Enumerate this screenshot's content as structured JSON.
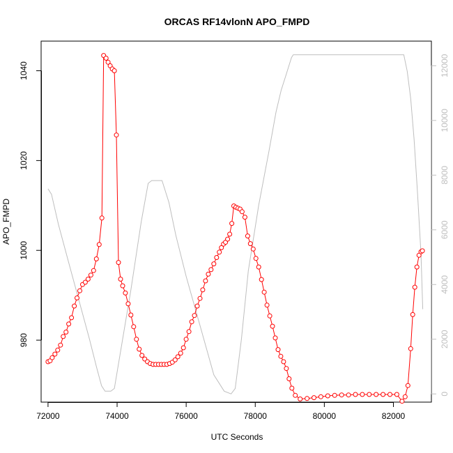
{
  "chart_data": {
    "type": "line",
    "title": "ORCAS RF14vlonN APO_FMPD",
    "xlabel": "UTC Seconds",
    "ylabel": "APO_FMPD",
    "xlim": [
      71800,
      83100
    ],
    "ylim": [
      966.2,
      1046.6
    ],
    "ylim_right": [
      -300,
      12900
    ],
    "x_ticks": [
      72000,
      74000,
      76000,
      78000,
      80000,
      82000
    ],
    "y_ticks": [
      980,
      1000,
      1020,
      1040
    ],
    "y_ticks_right": [
      0,
      2000,
      4000,
      6000,
      8000,
      10000,
      12000
    ],
    "grid": false,
    "colors": {
      "primary": "#ff0000",
      "secondary": "#bebebe",
      "axis": "#000000"
    },
    "series": [
      {
        "axis": "left",
        "style": "line-with-open-circles",
        "x": [
          72000,
          72060,
          72120,
          72200,
          72280,
          72360,
          72440,
          72520,
          72600,
          72680,
          72760,
          72840,
          72920,
          73000,
          73080,
          73160,
          73240,
          73320,
          73400,
          73480,
          73560,
          73610,
          73680,
          73740,
          73800,
          73860,
          73920,
          73980,
          74040,
          74100,
          74160,
          74240,
          74320,
          74400,
          74480,
          74560,
          74640,
          74720,
          74800,
          74880,
          74960,
          75040,
          75120,
          75200,
          75280,
          75360,
          75440,
          75520,
          75600,
          75680,
          75760,
          75840,
          75920,
          76000,
          76080,
          76160,
          76240,
          76320,
          76400,
          76480,
          76560,
          76640,
          76720,
          76800,
          76880,
          76960,
          77020,
          77080,
          77140,
          77200,
          77260,
          77320,
          77380,
          77440,
          77500,
          77560,
          77620,
          77700,
          77780,
          77860,
          77940,
          78020,
          78100,
          78180,
          78260,
          78340,
          78420,
          78500,
          78580,
          78660,
          78740,
          78820,
          78900,
          78980,
          79060,
          79160,
          79300,
          79500,
          79700,
          79900,
          80100,
          80300,
          80500,
          80700,
          80900,
          81100,
          81300,
          81500,
          81700,
          81900,
          82100,
          82250,
          82340,
          82420,
          82500,
          82560,
          82620,
          82680,
          82740,
          82800,
          82840
        ],
        "y": [
          975.2,
          975.4,
          976.1,
          976.9,
          977.8,
          978.9,
          980.8,
          981.8,
          983.6,
          985.0,
          987.6,
          989.4,
          991.0,
          992.4,
          992.9,
          993.6,
          994.5,
          995.5,
          998.1,
          1001.3,
          1007.2,
          1043.4,
          1042.8,
          1041.9,
          1041.1,
          1040.4,
          1040.0,
          1025.7,
          997.3,
          993.6,
          992.1,
          990.5,
          988.1,
          985.6,
          983.0,
          980.2,
          978.0,
          976.6,
          975.8,
          975.2,
          974.8,
          974.6,
          974.6,
          974.6,
          974.6,
          974.6,
          974.6,
          974.8,
          975.1,
          975.6,
          976.3,
          977.1,
          978.3,
          980.2,
          981.9,
          984.1,
          985.5,
          987.6,
          989.3,
          991.2,
          993.2,
          994.7,
          995.7,
          997.0,
          998.4,
          999.6,
          1000.6,
          1001.4,
          1001.8,
          1002.5,
          1003.6,
          1006.0,
          1009.9,
          1009.6,
          1009.4,
          1009.2,
          1008.6,
          1007.4,
          1003.2,
          1001.5,
          1000.3,
          998.2,
          996.3,
          993.5,
          990.7,
          987.8,
          985.4,
          983.1,
          980.5,
          977.9,
          976.4,
          975.2,
          973.7,
          971.4,
          969.3,
          967.7,
          966.9,
          967.0,
          967.2,
          967.4,
          967.6,
          967.7,
          967.8,
          967.8,
          967.9,
          967.9,
          967.9,
          967.9,
          967.9,
          967.9,
          967.9,
          966.4,
          967.4,
          969.9,
          978.1,
          985.7,
          991.8,
          996.3,
          998.9,
          999.7,
          999.9
        ]
      },
      {
        "axis": "right",
        "style": "line",
        "x": [
          72000,
          72100,
          72300,
          72600,
          72900,
          73200,
          73400,
          73550,
          73650,
          73820,
          73920,
          74080,
          74400,
          74700,
          74900,
          75000,
          75100,
          75300,
          75500,
          75700,
          76000,
          76400,
          76800,
          77100,
          77300,
          77420,
          77500,
          77600,
          77800,
          78100,
          78400,
          78600,
          78750,
          78900,
          79000,
          79050,
          79100,
          79500,
          80500,
          81500,
          82000,
          82200,
          82300,
          82400,
          82500,
          82600,
          82700,
          82800,
          82850
        ],
        "y": [
          7500,
          7300,
          6200,
          4800,
          3400,
          2000,
          1000,
          300,
          100,
          100,
          200,
          1400,
          3800,
          6300,
          7700,
          7800,
          7800,
          7800,
          7000,
          5800,
          4300,
          2500,
          700,
          100,
          0,
          200,
          1000,
          2000,
          4500,
          6900,
          8900,
          10300,
          11100,
          11700,
          12100,
          12300,
          12400,
          12400,
          12400,
          12400,
          12400,
          12400,
          12400,
          11800,
          10800,
          9300,
          7300,
          5100,
          3100
        ]
      }
    ]
  }
}
